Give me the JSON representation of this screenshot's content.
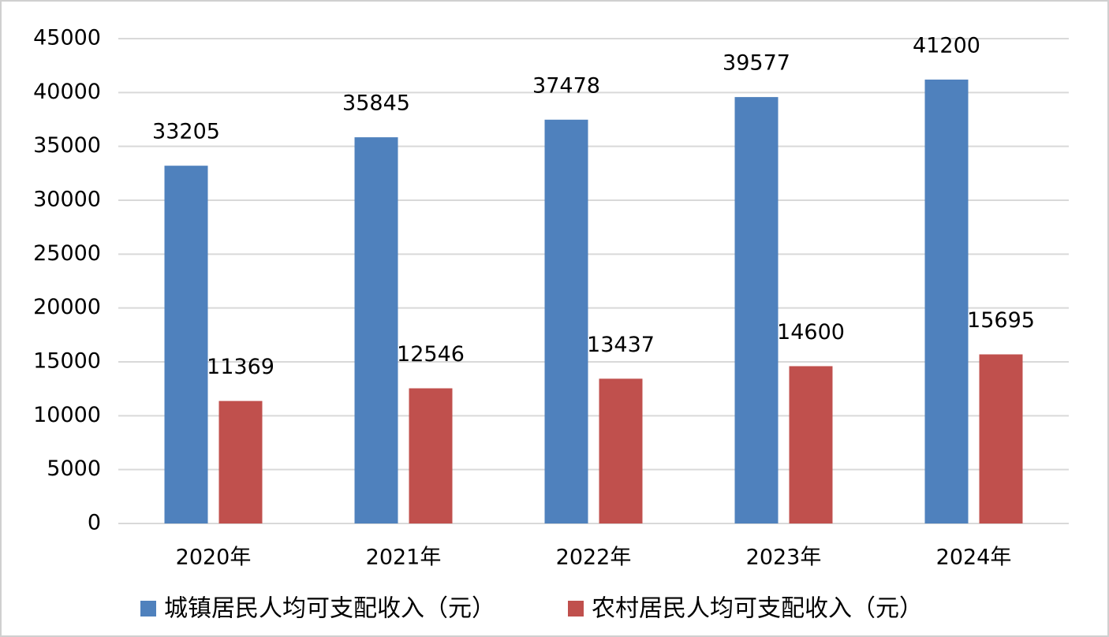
{
  "chart_data": {
    "type": "bar",
    "categories": [
      "2020年",
      "2021年",
      "2022年",
      "2023年",
      "2024年"
    ],
    "series": [
      {
        "name": "城镇居民人均可支配收入（元）",
        "color": "#4f81bd",
        "values": [
          33205,
          35845,
          37478,
          39577,
          41200
        ]
      },
      {
        "name": "农村居民人均可支配收入（元）",
        "color": "#c0504d",
        "values": [
          11369,
          12546,
          13437,
          14600,
          15695
        ]
      }
    ],
    "ylim": [
      0,
      45000
    ],
    "yticks": [
      0,
      5000,
      10000,
      15000,
      20000,
      25000,
      30000,
      35000,
      40000,
      45000
    ],
    "grid": true,
    "legend": "bottom"
  }
}
